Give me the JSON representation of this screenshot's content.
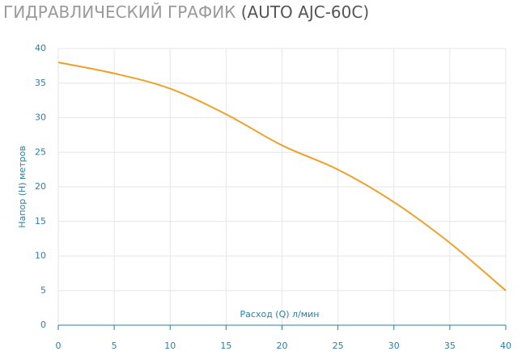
{
  "chart_data": {
    "type": "line",
    "title": "ГИДРАВЛИЧЕСКИЙ ГРАФИК",
    "model": "(AUTO AJC-60C)",
    "x_label": "Расход (Q) л/мин",
    "y_label": "Напор (H) метров",
    "x": [
      0,
      5,
      10,
      15,
      20,
      25,
      30,
      35,
      40
    ],
    "series": [
      {
        "color": "#f0a029",
        "values": [
          38,
          36.4,
          34.2,
          30.5,
          26,
          22.5,
          17.8,
          11.9,
          5
        ]
      }
    ],
    "xlim": [
      0,
      40
    ],
    "xticks": [
      0,
      5,
      10,
      15,
      20,
      25,
      30,
      35,
      40
    ],
    "ylim": [
      0,
      40
    ],
    "yticks": [
      0,
      5,
      10,
      15,
      20,
      25,
      30,
      35,
      40
    ],
    "grid": true
  }
}
